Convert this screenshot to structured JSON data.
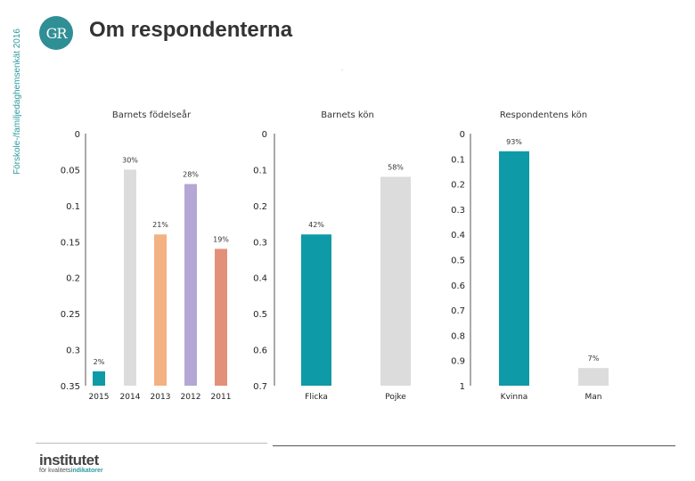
{
  "header": {
    "side_label": "Förskole-/familjedaghemsenkät 2016",
    "logo_text": "GR",
    "title": "Om respondenterna",
    "dot": "."
  },
  "footer": {
    "brand_main": "institutet",
    "brand_sub_prefix": "för kvalitets",
    "brand_sub_highlight": "indikatorer"
  },
  "colors": {
    "teal": "#0e9aa7",
    "grey": "#dcdcdc",
    "salmon": "#f4b183",
    "lavender": "#b4a7d6",
    "terracotta": "#e3907a",
    "axis": "#555555"
  },
  "chart_data": [
    {
      "type": "bar",
      "title": "Barnets födelseår",
      "yaxis_inverted": true,
      "ylim": [
        0,
        0.35
      ],
      "yticks": [
        0,
        0.05,
        0.1,
        0.15,
        0.2,
        0.25,
        0.3,
        0.35
      ],
      "ytick_labels": [
        "0",
        "0.05",
        "0.1",
        "0.15",
        "0.2",
        "0.25",
        "0.3",
        "0.35"
      ],
      "categories": [
        "2015",
        "2014",
        "2013",
        "2012",
        "2011"
      ],
      "values": [
        0.02,
        0.3,
        0.21,
        0.28,
        0.19
      ],
      "labels": [
        "2%",
        "30%",
        "21%",
        "28%",
        "19%"
      ],
      "colors": [
        "#0e9aa7",
        "#dcdcdc",
        "#f4b183",
        "#b4a7d6",
        "#e3907a"
      ]
    },
    {
      "type": "bar",
      "title": "Barnets kön",
      "yaxis_inverted": true,
      "ylim": [
        0,
        0.7
      ],
      "yticks": [
        0,
        0.1,
        0.2,
        0.3,
        0.4,
        0.5,
        0.6,
        0.7
      ],
      "ytick_labels": [
        "0",
        "0.1",
        "0.2",
        "0.3",
        "0.4",
        "0.5",
        "0.6",
        "0.7"
      ],
      "categories": [
        "Flicka",
        "Pojke"
      ],
      "values": [
        0.42,
        0.58
      ],
      "labels": [
        "42%",
        "58%"
      ],
      "colors": [
        "#0e9aa7",
        "#dcdcdc"
      ]
    },
    {
      "type": "bar",
      "title": "Respondentens kön",
      "yaxis_inverted": true,
      "ylim": [
        0,
        1
      ],
      "yticks": [
        0,
        0.1,
        0.2,
        0.3,
        0.4,
        0.5,
        0.6,
        0.7,
        0.8,
        0.9,
        1
      ],
      "ytick_labels": [
        "0",
        "0.1",
        "0.2",
        "0.3",
        "0.4",
        "0.5",
        "0.6",
        "0.7",
        "0.8",
        "0.9",
        "1"
      ],
      "categories": [
        "Kvinna",
        "Man"
      ],
      "values": [
        0.93,
        0.07
      ],
      "labels": [
        "93%",
        "7%"
      ],
      "colors": [
        "#0e9aa7",
        "#dcdcdc"
      ]
    }
  ]
}
